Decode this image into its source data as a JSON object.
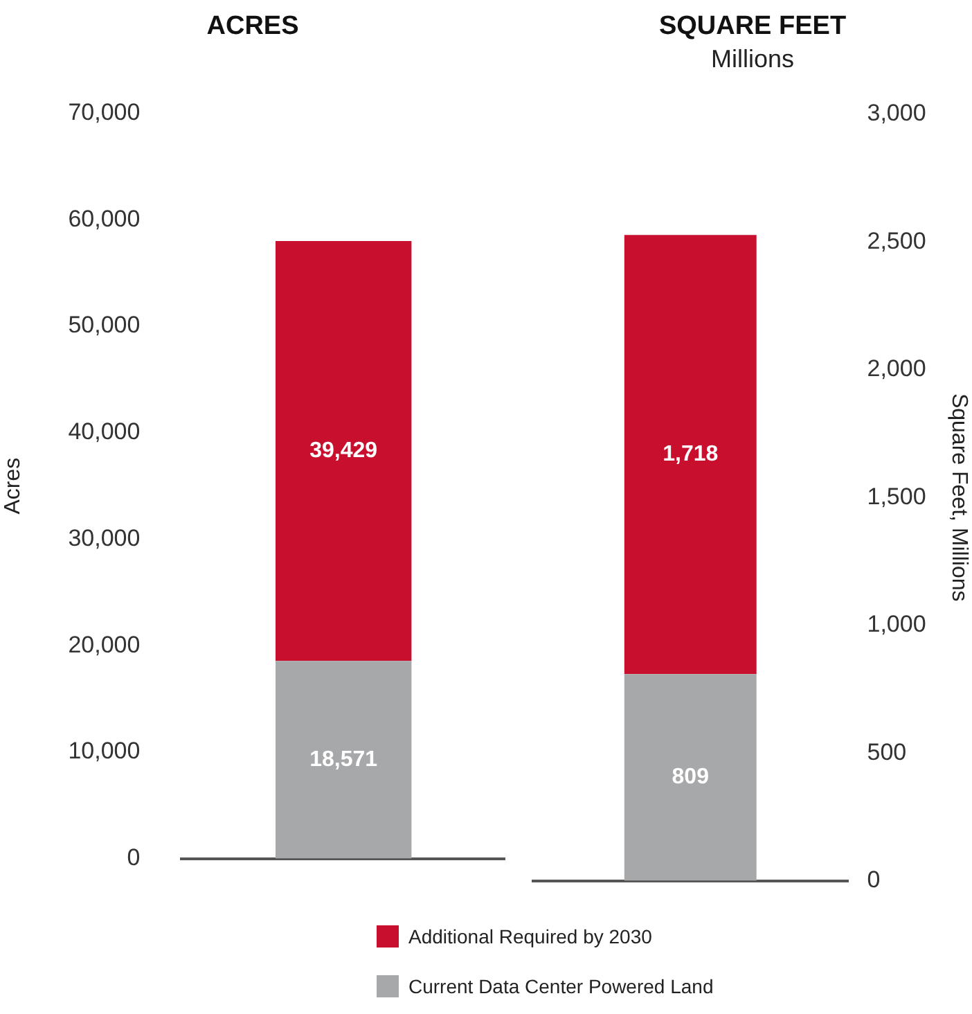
{
  "chart_data": [
    {
      "type": "bar",
      "title": "ACRES",
      "ylabel": "Acres",
      "categories": [
        null
      ],
      "stacked": true,
      "legend": "bottom",
      "grid": false,
      "ylim": [
        0,
        70000
      ],
      "yticks": [
        {
          "value": 0,
          "label": "0"
        },
        {
          "value": 10000,
          "label": "10,000"
        },
        {
          "value": 20000,
          "label": "20,000"
        },
        {
          "value": 30000,
          "label": "30,000"
        },
        {
          "value": 40000,
          "label": "40,000"
        },
        {
          "value": 50000,
          "label": "50,000"
        },
        {
          "value": 60000,
          "label": "60,000"
        },
        {
          "value": 70000,
          "label": "70,000"
        }
      ],
      "series": [
        {
          "name": "Current Data Center Powered Land",
          "color": "#a7a8aa",
          "values": [
            18571
          ],
          "value_labels": [
            "18,571"
          ]
        },
        {
          "name": "Additional Required by 2030",
          "color": "#c8102e",
          "values": [
            39429
          ],
          "value_labels": [
            "39,429"
          ]
        }
      ]
    },
    {
      "type": "bar",
      "title": "SQUARE FEET",
      "subtitle": "Millions",
      "ylabel": "Square Feet, Millions",
      "categories": [
        null
      ],
      "stacked": true,
      "grid": false,
      "ylim": [
        0,
        3000
      ],
      "yticks": [
        {
          "value": 0,
          "label": "0"
        },
        {
          "value": 500,
          "label": "500"
        },
        {
          "value": 1000,
          "label": "1,000"
        },
        {
          "value": 1500,
          "label": "1,500"
        },
        {
          "value": 2000,
          "label": "2,000"
        },
        {
          "value": 2500,
          "label": "2,500"
        },
        {
          "value": 3000,
          "label": "3,000"
        }
      ],
      "series": [
        {
          "color": "#a7a8aa",
          "values": [
            809
          ],
          "value_labels": [
            "809"
          ]
        },
        {
          "color": "#c8102e",
          "values": [
            1718
          ],
          "value_labels": [
            "1,718"
          ]
        }
      ]
    }
  ]
}
